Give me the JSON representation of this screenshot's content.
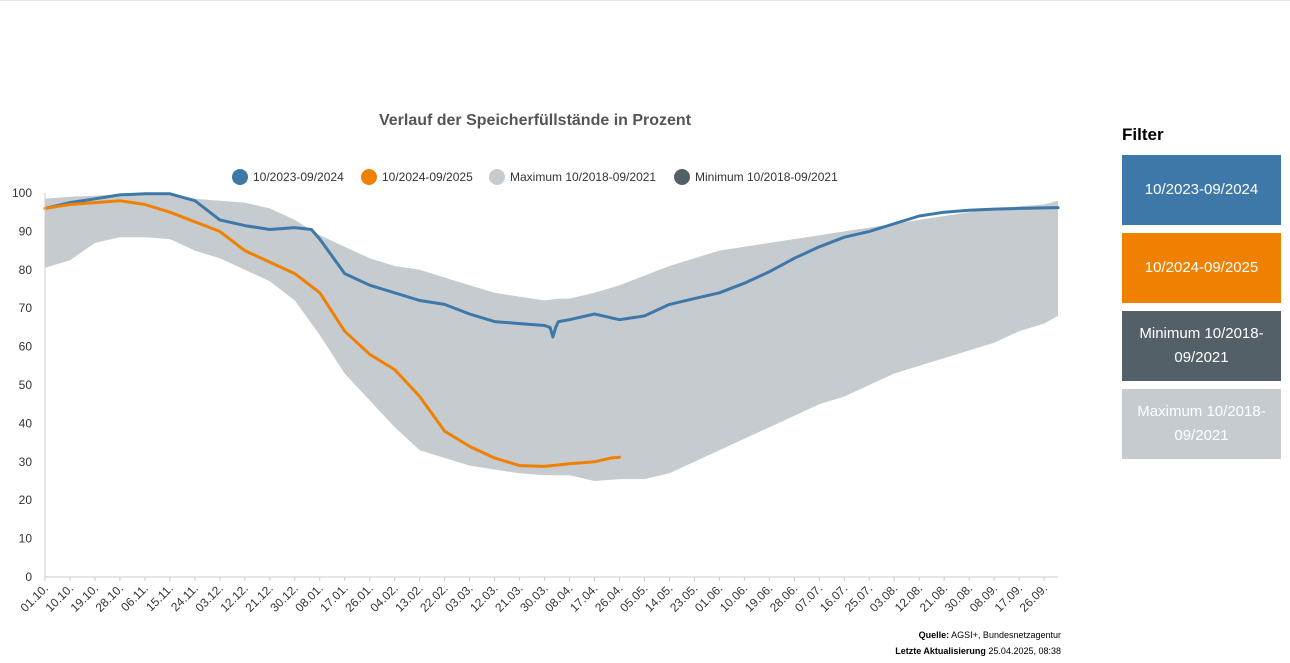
{
  "chart_data": {
    "type": "line",
    "title": "Verlauf der Speicherfüllstände in Prozent",
    "xlabel": "",
    "ylabel": "",
    "ylim": [
      0,
      100
    ],
    "y_ticks": [
      0,
      10,
      20,
      30,
      40,
      50,
      60,
      70,
      80,
      90,
      100
    ],
    "grid": false,
    "legend_position": "top",
    "x_tick_labels": [
      "01.10.",
      "10.10.",
      "19.10.",
      "28.10.",
      "06.11.",
      "15.11.",
      "24.11.",
      "03.12.",
      "12.12.",
      "21.12.",
      "30.12.",
      "08.01.",
      "17.01.",
      "26.01.",
      "04.02.",
      "13.02.",
      "22.02.",
      "03.03.",
      "12.03.",
      "21.03.",
      "30.03.",
      "08.04.",
      "17.04.",
      "26.04.",
      "05.05.",
      "14.05.",
      "23.05.",
      "01.06.",
      "10.06.",
      "19.06.",
      "28.06.",
      "07.07.",
      "16.07.",
      "25.07.",
      "03.08.",
      "12.08.",
      "21.08.",
      "30.08.",
      "08.09.",
      "17.09.",
      "26.09."
    ],
    "x_day_index_unit": "days from 01.10.",
    "series": [
      {
        "name": "Maximum 10/2018-09/2021",
        "kind": "band-upper",
        "color": "#c5cbcf",
        "points": [
          [
            0,
            98.5
          ],
          [
            9,
            99
          ],
          [
            18,
            99.3
          ],
          [
            27,
            99.7
          ],
          [
            36,
            99.8
          ],
          [
            45,
            99.5
          ],
          [
            54,
            98.5
          ],
          [
            63,
            98
          ],
          [
            72,
            97.5
          ],
          [
            81,
            96
          ],
          [
            90,
            93
          ],
          [
            99,
            89
          ],
          [
            108,
            86
          ],
          [
            117,
            83
          ],
          [
            126,
            81
          ],
          [
            135,
            80
          ],
          [
            144,
            78
          ],
          [
            153,
            76
          ],
          [
            162,
            74
          ],
          [
            171,
            73
          ],
          [
            180,
            72
          ],
          [
            185,
            72.5
          ],
          [
            189,
            72.5
          ],
          [
            198,
            74
          ],
          [
            207,
            76
          ],
          [
            216,
            78.5
          ],
          [
            225,
            81
          ],
          [
            234,
            83
          ],
          [
            243,
            85
          ],
          [
            252,
            86
          ],
          [
            261,
            87
          ],
          [
            270,
            88
          ],
          [
            279,
            89
          ],
          [
            288,
            90
          ],
          [
            297,
            91
          ],
          [
            306,
            92
          ],
          [
            315,
            93
          ],
          [
            324,
            94
          ],
          [
            333,
            95
          ],
          [
            342,
            96
          ],
          [
            351,
            96.5
          ],
          [
            360,
            97
          ],
          [
            365,
            98
          ]
        ]
      },
      {
        "name": "Minimum 10/2018-09/2021",
        "kind": "band-lower",
        "color": "#546068",
        "points": [
          [
            0,
            80.5
          ],
          [
            9,
            82.5
          ],
          [
            18,
            87
          ],
          [
            27,
            88.5
          ],
          [
            36,
            88.5
          ],
          [
            45,
            88
          ],
          [
            54,
            85
          ],
          [
            63,
            83
          ],
          [
            72,
            80
          ],
          [
            81,
            77
          ],
          [
            90,
            72
          ],
          [
            99,
            63
          ],
          [
            108,
            53
          ],
          [
            117,
            46
          ],
          [
            126,
            39
          ],
          [
            135,
            33
          ],
          [
            144,
            31
          ],
          [
            153,
            29
          ],
          [
            162,
            28
          ],
          [
            171,
            27
          ],
          [
            180,
            26.5
          ],
          [
            189,
            26.5
          ],
          [
            198,
            25
          ],
          [
            207,
            25.5
          ],
          [
            216,
            25.5
          ],
          [
            225,
            27
          ],
          [
            234,
            30
          ],
          [
            243,
            33
          ],
          [
            252,
            36
          ],
          [
            261,
            39
          ],
          [
            270,
            42
          ],
          [
            279,
            45
          ],
          [
            288,
            47
          ],
          [
            297,
            50
          ],
          [
            306,
            53
          ],
          [
            315,
            55
          ],
          [
            324,
            57
          ],
          [
            333,
            59
          ],
          [
            342,
            61
          ],
          [
            351,
            64
          ],
          [
            360,
            66
          ],
          [
            365,
            68
          ]
        ]
      },
      {
        "name": "10/2023-09/2024",
        "color": "#3d78a8",
        "points": [
          [
            0,
            96
          ],
          [
            9,
            97.5
          ],
          [
            18,
            98.5
          ],
          [
            27,
            99.5
          ],
          [
            36,
            99.8
          ],
          [
            45,
            99.8
          ],
          [
            54,
            98
          ],
          [
            63,
            93
          ],
          [
            72,
            91.5
          ],
          [
            81,
            90.5
          ],
          [
            90,
            91
          ],
          [
            96,
            90.5
          ],
          [
            99,
            88
          ],
          [
            108,
            79
          ],
          [
            117,
            76
          ],
          [
            126,
            74
          ],
          [
            135,
            72
          ],
          [
            144,
            71
          ],
          [
            153,
            68.5
          ],
          [
            162,
            66.5
          ],
          [
            171,
            66
          ],
          [
            180,
            65.5
          ],
          [
            182,
            65
          ],
          [
            183,
            62.5
          ],
          [
            184,
            65
          ],
          [
            185,
            66.5
          ],
          [
            189,
            67
          ],
          [
            198,
            68.5
          ],
          [
            207,
            67
          ],
          [
            216,
            68
          ],
          [
            225,
            71
          ],
          [
            234,
            72.5
          ],
          [
            243,
            74
          ],
          [
            252,
            76.5
          ],
          [
            261,
            79.5
          ],
          [
            270,
            83
          ],
          [
            279,
            86
          ],
          [
            288,
            88.5
          ],
          [
            297,
            90
          ],
          [
            306,
            92
          ],
          [
            315,
            94
          ],
          [
            324,
            95
          ],
          [
            333,
            95.5
          ],
          [
            342,
            95.8
          ],
          [
            351,
            96
          ],
          [
            365,
            96.2
          ]
        ]
      },
      {
        "name": "10/2024-09/2025",
        "color": "#f08100",
        "points": [
          [
            0,
            96
          ],
          [
            9,
            97
          ],
          [
            18,
            97.5
          ],
          [
            27,
            98
          ],
          [
            36,
            97
          ],
          [
            45,
            95
          ],
          [
            54,
            92.5
          ],
          [
            63,
            90
          ],
          [
            72,
            85
          ],
          [
            81,
            82
          ],
          [
            90,
            79
          ],
          [
            99,
            74
          ],
          [
            108,
            64
          ],
          [
            117,
            58
          ],
          [
            126,
            54
          ],
          [
            135,
            47
          ],
          [
            144,
            38
          ],
          [
            153,
            34
          ],
          [
            162,
            31
          ],
          [
            171,
            29
          ],
          [
            180,
            28.8
          ],
          [
            189,
            29.5
          ],
          [
            198,
            30
          ],
          [
            204,
            31
          ],
          [
            207,
            31.2
          ]
        ]
      }
    ],
    "legend": [
      {
        "label": "10/2023-09/2024",
        "color": "#3d78a8"
      },
      {
        "label": "10/2024-09/2025",
        "color": "#f08100"
      },
      {
        "label": "Maximum 10/2018-09/2021",
        "color": "#c5cbcf"
      },
      {
        "label": "Minimum 10/2018-09/2021",
        "color": "#546068"
      }
    ]
  },
  "source": {
    "label": "Quelle:",
    "value": "AGSI+, Bundesnetzagentur",
    "update_label": "Letzte Aktualisierung",
    "update_value": "25.04.2025, 08:38"
  },
  "filter": {
    "title": "Filter",
    "buttons": [
      {
        "label": "10/2023-09/2024",
        "bg": "#3d78a8",
        "fg": "#ffffff"
      },
      {
        "label": "10/2024-09/2025",
        "bg": "#f08100",
        "fg": "#ffffff"
      },
      {
        "label": "Minimum 10/2018-09/2021",
        "bg": "#546068",
        "fg": "#ffffff"
      },
      {
        "label": "Maximum 10/2018-09/2021",
        "bg": "#c5cbcf",
        "fg": "#ffffff"
      }
    ]
  }
}
